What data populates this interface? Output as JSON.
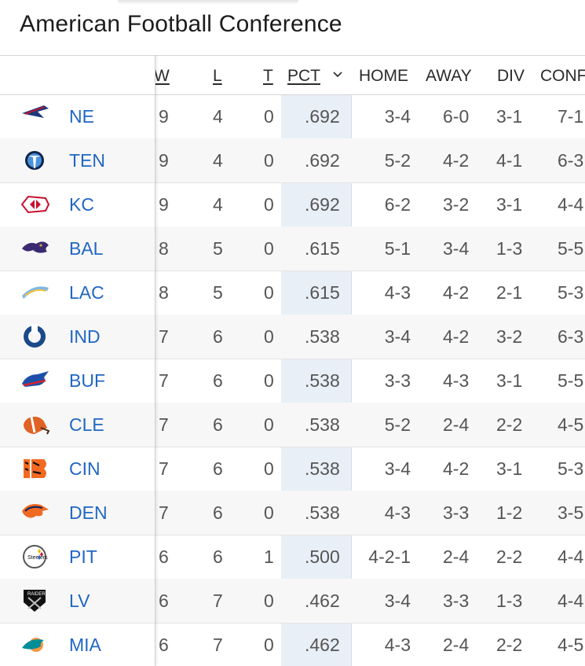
{
  "title": "American Football Conference",
  "columns": {
    "w": "W",
    "l": "L",
    "t": "T",
    "pct": "PCT",
    "home": "HOME",
    "away": "AWAY",
    "div": "DIV",
    "conf": "CONF"
  },
  "teams": [
    {
      "abbr": "NE",
      "w": "9",
      "l": "4",
      "t": "0",
      "pct": ".692",
      "home": "3-4",
      "away": "6-0",
      "div": "3-1",
      "conf": "7-1",
      "logo": "patriots-logo"
    },
    {
      "abbr": "TEN",
      "w": "9",
      "l": "4",
      "t": "0",
      "pct": ".692",
      "home": "5-2",
      "away": "4-2",
      "div": "4-1",
      "conf": "6-3",
      "logo": "titans-logo"
    },
    {
      "abbr": "KC",
      "w": "9",
      "l": "4",
      "t": "0",
      "pct": ".692",
      "home": "6-2",
      "away": "3-2",
      "div": "3-1",
      "conf": "4-4",
      "logo": "chiefs-logo"
    },
    {
      "abbr": "BAL",
      "w": "8",
      "l": "5",
      "t": "0",
      "pct": ".615",
      "home": "5-1",
      "away": "3-4",
      "div": "1-3",
      "conf": "5-5",
      "logo": "ravens-logo"
    },
    {
      "abbr": "LAC",
      "w": "8",
      "l": "5",
      "t": "0",
      "pct": ".615",
      "home": "4-3",
      "away": "4-2",
      "div": "2-1",
      "conf": "5-3",
      "logo": "chargers-logo"
    },
    {
      "abbr": "IND",
      "w": "7",
      "l": "6",
      "t": "0",
      "pct": ".538",
      "home": "3-4",
      "away": "4-2",
      "div": "3-2",
      "conf": "6-3",
      "logo": "colts-logo"
    },
    {
      "abbr": "BUF",
      "w": "7",
      "l": "6",
      "t": "0",
      "pct": ".538",
      "home": "3-3",
      "away": "4-3",
      "div": "3-1",
      "conf": "5-5",
      "logo": "bills-logo"
    },
    {
      "abbr": "CLE",
      "w": "7",
      "l": "6",
      "t": "0",
      "pct": ".538",
      "home": "5-2",
      "away": "2-4",
      "div": "2-2",
      "conf": "4-5",
      "logo": "browns-logo"
    },
    {
      "abbr": "CIN",
      "w": "7",
      "l": "6",
      "t": "0",
      "pct": ".538",
      "home": "3-4",
      "away": "4-2",
      "div": "3-1",
      "conf": "5-3",
      "logo": "bengals-logo"
    },
    {
      "abbr": "DEN",
      "w": "7",
      "l": "6",
      "t": "0",
      "pct": ".538",
      "home": "4-3",
      "away": "3-3",
      "div": "1-2",
      "conf": "3-5",
      "logo": "broncos-logo"
    },
    {
      "abbr": "PIT",
      "w": "6",
      "l": "6",
      "t": "1",
      "pct": ".500",
      "home": "4-2-1",
      "away": "2-4",
      "div": "2-2",
      "conf": "4-4",
      "logo": "steelers-logo"
    },
    {
      "abbr": "LV",
      "w": "6",
      "l": "7",
      "t": "0",
      "pct": ".462",
      "home": "3-4",
      "away": "3-3",
      "div": "1-3",
      "conf": "4-4",
      "logo": "raiders-logo"
    },
    {
      "abbr": "MIA",
      "w": "6",
      "l": "7",
      "t": "0",
      "pct": ".462",
      "home": "4-3",
      "away": "2-4",
      "div": "2-2",
      "conf": "4-5",
      "logo": "dolphins-logo"
    }
  ],
  "colors": {
    "link": "#2167c4",
    "pct_band": "#e9eff7"
  }
}
